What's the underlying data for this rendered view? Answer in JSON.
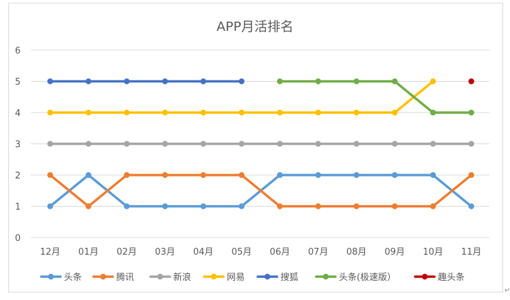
{
  "chart_data": {
    "type": "line",
    "title": "APP月活排名",
    "xlabel": "",
    "ylabel": "",
    "categories": [
      "12月",
      "01月",
      "02月",
      "03月",
      "04月",
      "05月",
      "06月",
      "07月",
      "08月",
      "09月",
      "10月",
      "11月"
    ],
    "ylim": [
      0,
      6
    ],
    "yticks": [
      "0",
      "1",
      "2",
      "3",
      "4",
      "5",
      "6"
    ],
    "grid": true,
    "legend_position": "bottom",
    "series": [
      {
        "name": "头条",
        "color": "#5B9BD5",
        "values": [
          1,
          2,
          1,
          1,
          1,
          1,
          2,
          2,
          2,
          2,
          2,
          1
        ]
      },
      {
        "name": "腾讯",
        "color": "#ED7D31",
        "values": [
          2,
          1,
          2,
          2,
          2,
          2,
          1,
          1,
          1,
          1,
          1,
          2
        ]
      },
      {
        "name": "新浪",
        "color": "#A5A5A5",
        "values": [
          3,
          3,
          3,
          3,
          3,
          3,
          3,
          3,
          3,
          3,
          3,
          3
        ]
      },
      {
        "name": "网易",
        "color": "#FFC000",
        "values": [
          4,
          4,
          4,
          4,
          4,
          4,
          4,
          4,
          4,
          4,
          5,
          null
        ]
      },
      {
        "name": "搜狐",
        "color": "#4472C4",
        "values": [
          5,
          5,
          5,
          5,
          5,
          5,
          null,
          null,
          null,
          null,
          null,
          null
        ]
      },
      {
        "name": "头条(极速版）",
        "color": "#70AD47",
        "values": [
          null,
          null,
          null,
          null,
          null,
          null,
          5,
          5,
          5,
          5,
          4,
          4
        ]
      },
      {
        "name": "趣头条",
        "color": "#C00000",
        "values": [
          null,
          null,
          null,
          null,
          null,
          null,
          null,
          null,
          null,
          null,
          null,
          5
        ]
      }
    ]
  }
}
